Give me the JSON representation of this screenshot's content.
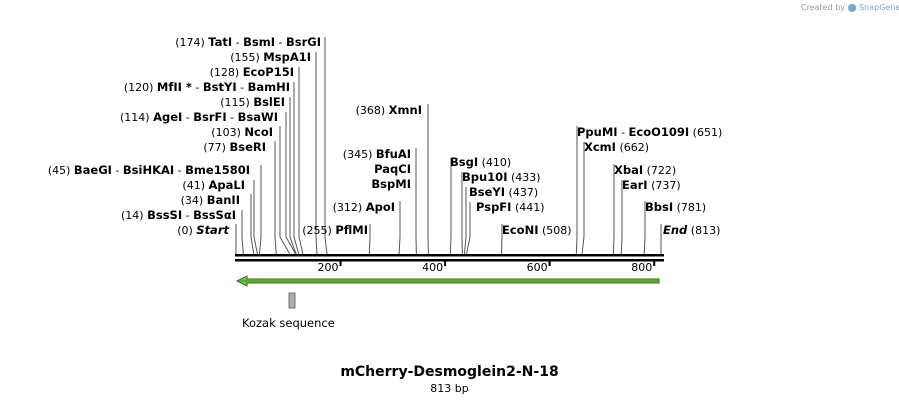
{
  "credit": {
    "prefix": "Created by",
    "brand": "SnapGene"
  },
  "sequence": {
    "name": "mCherry-Desmoglein2-N-18",
    "length_label": "813 bp",
    "length": 813
  },
  "ticks": [
    {
      "value": 200,
      "label": "200"
    },
    {
      "value": 400,
      "label": "400"
    },
    {
      "value": 600,
      "label": "600"
    },
    {
      "value": 800,
      "label": "800"
    }
  ],
  "feature": {
    "name": "Kozak sequence"
  },
  "sites": [
    {
      "pos": 0,
      "pos_label": "(0)",
      "names": [
        "Start"
      ],
      "italic": true
    },
    {
      "pos": 14,
      "pos_label": "(14)",
      "names": [
        "BssSI",
        "BssSαI"
      ]
    },
    {
      "pos": 34,
      "pos_label": "(34)",
      "names": [
        "BanII"
      ]
    },
    {
      "pos": 41,
      "pos_label": "(41)",
      "names": [
        "ApaLI"
      ]
    },
    {
      "pos": 45,
      "pos_label": "(45)",
      "names": [
        "BaeGI",
        "BsiHKAI",
        "Bme1580I"
      ]
    },
    {
      "pos": 77,
      "pos_label": "(77)",
      "names": [
        "BseRI"
      ]
    },
    {
      "pos": 103,
      "pos_label": "(103)",
      "names": [
        "NcoI"
      ]
    },
    {
      "pos": 114,
      "pos_label": "(114)",
      "names": [
        "AgeI",
        "BsrFI",
        "BsaWI"
      ]
    },
    {
      "pos": 115,
      "pos_label": "(115)",
      "names": [
        "BslEI"
      ]
    },
    {
      "pos": 120,
      "pos_label": "(120)",
      "names": [
        "MfII *",
        "BstYI",
        "BamHI"
      ]
    },
    {
      "pos": 128,
      "pos_label": "(128)",
      "names": [
        "EcoP15I"
      ]
    },
    {
      "pos": 155,
      "pos_label": "(155)",
      "names": [
        "MspA1I"
      ]
    },
    {
      "pos": 174,
      "pos_label": "(174)",
      "names": [
        "TatI",
        "BsmI",
        "BsrGI"
      ]
    },
    {
      "pos": 255,
      "pos_label": "(255)",
      "names": [
        "PflMI"
      ]
    },
    {
      "pos": 312,
      "pos_label": "(312)",
      "names": [
        "ApoI"
      ]
    },
    {
      "pos": 345,
      "pos_label": "(345)",
      "names": [
        "BfuAI"
      ]
    },
    {
      "pos": 345,
      "pos_label": "",
      "names": [
        "PaqCI"
      ]
    },
    {
      "pos": 345,
      "pos_label": "",
      "names": [
        "BspMI"
      ]
    },
    {
      "pos": 368,
      "pos_label": "(368)",
      "names": [
        "XmnI"
      ]
    },
    {
      "pos": 410,
      "pos_label": "(410)",
      "names": [
        "BsgI"
      ]
    },
    {
      "pos": 433,
      "pos_label": "(433)",
      "names": [
        "Bpu10I"
      ]
    },
    {
      "pos": 437,
      "pos_label": "(437)",
      "names": [
        "BseYI"
      ]
    },
    {
      "pos": 441,
      "pos_label": "(441)",
      "names": [
        "PspFI"
      ]
    },
    {
      "pos": 508,
      "pos_label": "(508)",
      "names": [
        "EcoNI"
      ]
    },
    {
      "pos": 651,
      "pos_label": "(651)",
      "names": [
        "PpuMI",
        "EcoO109I"
      ]
    },
    {
      "pos": 662,
      "pos_label": "(662)",
      "names": [
        "XcmI"
      ]
    },
    {
      "pos": 722,
      "pos_label": "(722)",
      "names": [
        "XbaI"
      ]
    },
    {
      "pos": 737,
      "pos_label": "(737)",
      "names": [
        "EarI"
      ]
    },
    {
      "pos": 781,
      "pos_label": "(781)",
      "names": [
        "BbsI"
      ]
    },
    {
      "pos": 813,
      "pos_label": "(813)",
      "names": [
        "End"
      ],
      "italic": true
    }
  ],
  "colors": {
    "feature_arrow": "#7ec850",
    "feature_arrow_dark": "#2f6a12",
    "kozak_box": "#b0b0b0"
  }
}
